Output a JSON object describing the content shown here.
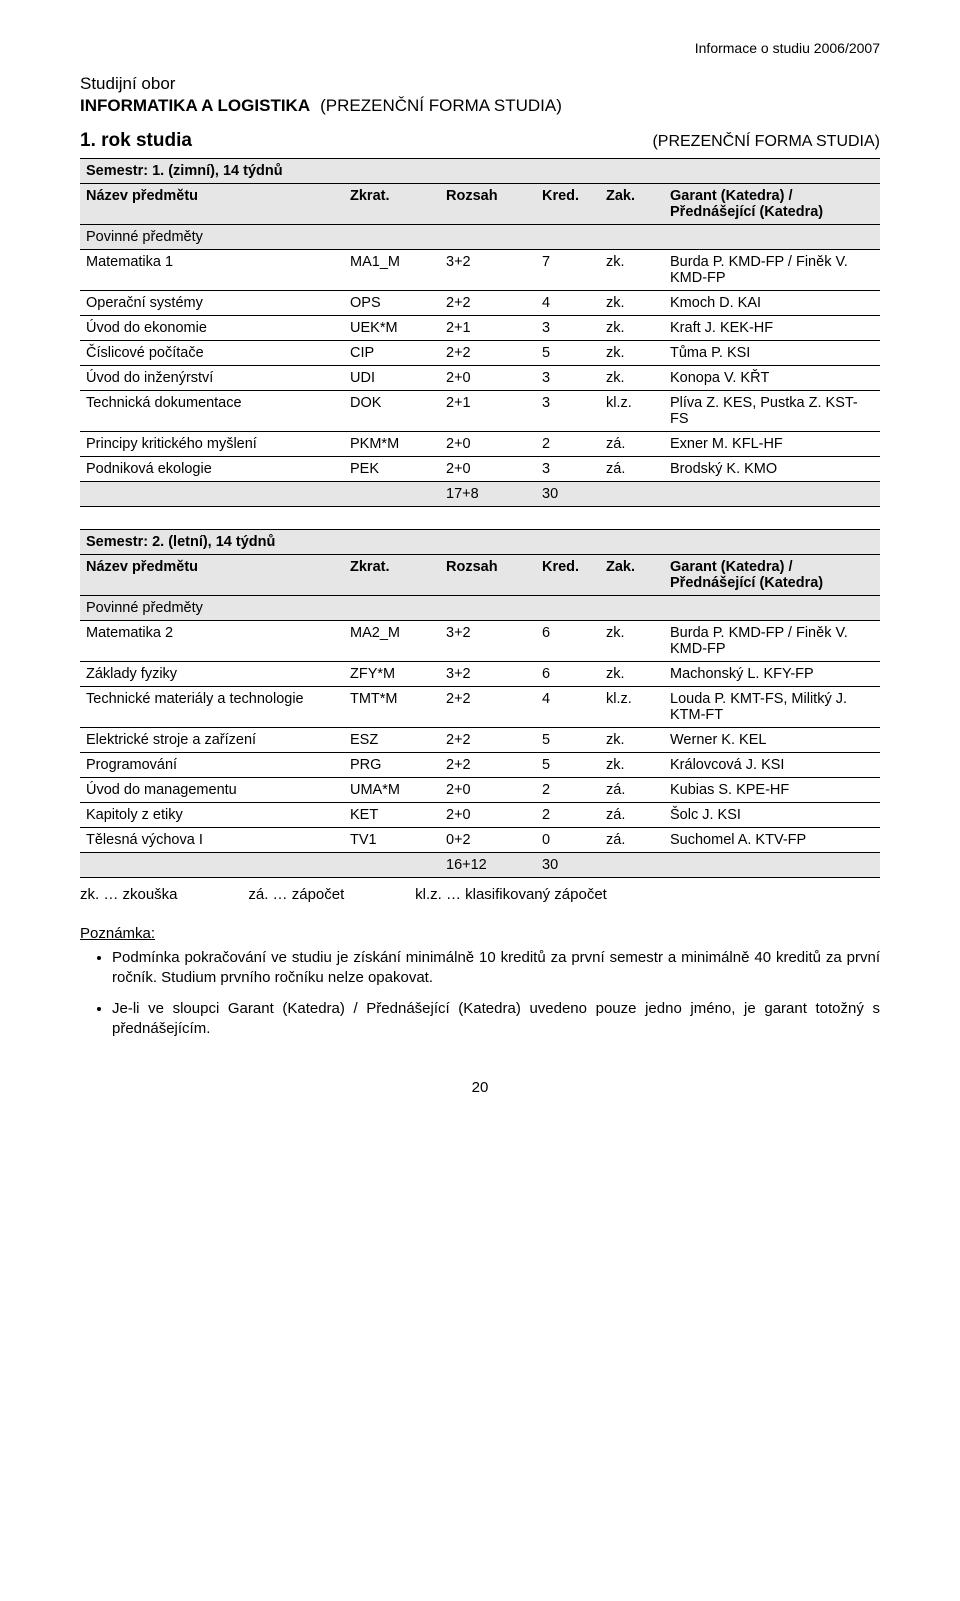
{
  "header_right": "Informace o studiu 2006/2007",
  "program_label": "Studijní obor",
  "program_title": "INFORMATIKA A LOGISTIKA",
  "program_form": "(PREZENČNÍ FORMA STUDIA)",
  "year_label": "1. rok studia",
  "year_form": "(PREZENČNÍ FORMA STUDIA)",
  "cols": {
    "name": "Název předmětu",
    "abbr": "Zkrat.",
    "extent": "Rozsah",
    "cred": "Kred.",
    "end": "Zak.",
    "garant": "Garant (Katedra) / Přednášející (Katedra)"
  },
  "section_label": "Povinné předměty",
  "sem1": {
    "title": "Semestr: 1. (zimní), 14 týdnů",
    "rows": [
      {
        "name": "Matematika 1",
        "abbr": "MA1_M",
        "ext": "3+2",
        "cred": "7",
        "end": "zk.",
        "gar": "Burda P. KMD-FP / Finěk V. KMD-FP"
      },
      {
        "name": "Operační systémy",
        "abbr": "OPS",
        "ext": "2+2",
        "cred": "4",
        "end": "zk.",
        "gar": "Kmoch D. KAI"
      },
      {
        "name": "Úvod do ekonomie",
        "abbr": "UEK*M",
        "ext": "2+1",
        "cred": "3",
        "end": "zk.",
        "gar": "Kraft J. KEK-HF"
      },
      {
        "name": "Číslicové počítače",
        "abbr": "CIP",
        "ext": "2+2",
        "cred": "5",
        "end": "zk.",
        "gar": "Tůma P. KSI"
      },
      {
        "name": "Úvod do inženýrství",
        "abbr": "UDI",
        "ext": "2+0",
        "cred": "3",
        "end": "zk.",
        "gar": "Konopa V. KŘT"
      },
      {
        "name": "Technická dokumentace",
        "abbr": "DOK",
        "ext": "2+1",
        "cred": "3",
        "end": "kl.z.",
        "gar": "Plíva Z. KES, Pustka Z. KST-FS"
      },
      {
        "name": "Principy kritického myšlení",
        "abbr": "PKM*M",
        "ext": "2+0",
        "cred": "2",
        "end": "zá.",
        "gar": "Exner M. KFL-HF"
      },
      {
        "name": "Podniková ekologie",
        "abbr": "PEK",
        "ext": "2+0",
        "cred": "3",
        "end": "zá.",
        "gar": "Brodský K. KMO"
      }
    ],
    "total_ext": "17+8",
    "total_cred": "30"
  },
  "sem2": {
    "title": "Semestr: 2. (letní), 14 týdnů",
    "rows": [
      {
        "name": "Matematika 2",
        "abbr": "MA2_M",
        "ext": "3+2",
        "cred": "6",
        "end": "zk.",
        "gar": "Burda P. KMD-FP / Finěk V. KMD-FP"
      },
      {
        "name": "Základy fyziky",
        "abbr": "ZFY*M",
        "ext": "3+2",
        "cred": "6",
        "end": "zk.",
        "gar": "Machonský L. KFY-FP"
      },
      {
        "name": "Technické materiály a technologie",
        "abbr": "TMT*M",
        "ext": "2+2",
        "cred": "4",
        "end": "kl.z.",
        "gar": "Louda P. KMT-FS, Militký J. KTM-FT"
      },
      {
        "name": "Elektrické stroje a zařízení",
        "abbr": "ESZ",
        "ext": "2+2",
        "cred": "5",
        "end": "zk.",
        "gar": "Werner K. KEL"
      },
      {
        "name": "Programování",
        "abbr": "PRG",
        "ext": "2+2",
        "cred": "5",
        "end": "zk.",
        "gar": "Královcová J. KSI"
      },
      {
        "name": "Úvod do managementu",
        "abbr": "UMA*M",
        "ext": "2+0",
        "cred": "2",
        "end": "zá.",
        "gar": "Kubias S. KPE-HF"
      },
      {
        "name": "Kapitoly z etiky",
        "abbr": "KET",
        "ext": "2+0",
        "cred": "2",
        "end": "zá.",
        "gar": "Šolc J. KSI"
      },
      {
        "name": "Tělesná výchova I",
        "abbr": "TV1",
        "ext": "0+2",
        "cred": "0",
        "end": "zá.",
        "gar": "Suchomel A. KTV-FP"
      }
    ],
    "total_ext": "16+12",
    "total_cred": "30"
  },
  "legend": "zk. … zkouška                 zá. … zápočet                 kl.z. … klasifikovaný zápočet",
  "note_label": "Poznámka:",
  "notes": [
    "Podmínka pokračování ve studiu je získání minimálně 10 kreditů za první semestr a minimálně 40 kreditů za první ročník. Studium prvního ročníku nelze opakovat.",
    "Je-li ve sloupci Garant (Katedra) / Přednášející (Katedra) uvedeno pouze jedno jméno, je garant totožný s přednášejícím."
  ],
  "page_number": "20"
}
